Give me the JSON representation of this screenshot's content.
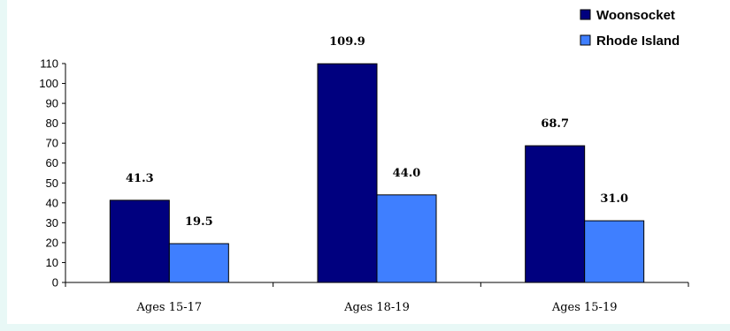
{
  "chart_data": {
    "type": "bar",
    "categories": [
      "Ages 15-17",
      "Ages 18-19",
      "Ages 15-19"
    ],
    "series": [
      {
        "name": "Woonsocket",
        "values": [
          41.3,
          109.9,
          68.7
        ],
        "labels": [
          "41.3",
          "109.9",
          "68.7"
        ],
        "color": "#00007f"
      },
      {
        "name": "Rhode Island",
        "values": [
          19.5,
          44.0,
          31.0
        ],
        "labels": [
          "19.5",
          "44.0",
          "31.0"
        ],
        "color": "#3f7fff"
      }
    ],
    "yticks": [
      "0",
      "10",
      "20",
      "30",
      "40",
      "50",
      "60",
      "70",
      "80",
      "90",
      "100",
      "110"
    ],
    "ylim": [
      0,
      110
    ],
    "grid": false,
    "legend_position": "top-right"
  }
}
